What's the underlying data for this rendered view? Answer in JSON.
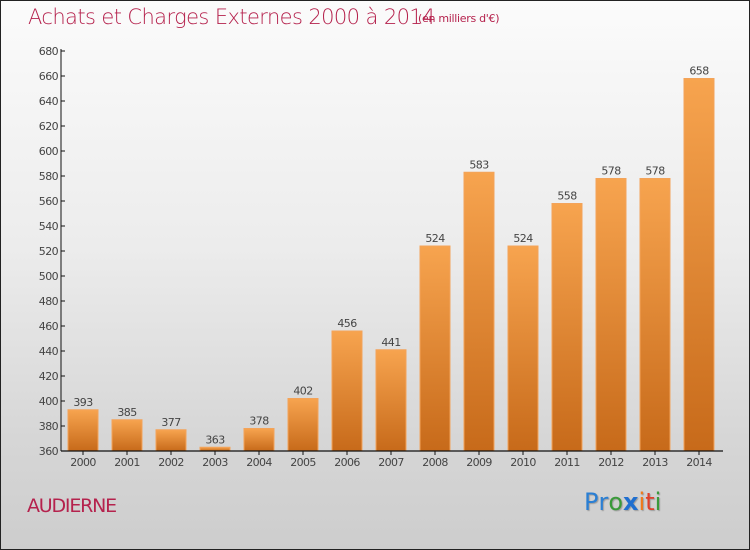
{
  "title": "Achats et Charges Externes 2000 à 2014",
  "subtitle": "(en milliers d'€)",
  "city": "AUDIERNE",
  "logo": {
    "letters": [
      {
        "char": "P",
        "color": "#2a7fd4"
      },
      {
        "char": "r",
        "color": "#2a7fd4"
      },
      {
        "char": "o",
        "color": "#3a9a3a"
      },
      {
        "char": "x",
        "color": "#1f6fd0"
      },
      {
        "char": "i",
        "color": "#f07a1a"
      },
      {
        "char": "t",
        "color": "#e0402a"
      },
      {
        "char": "i",
        "color": "#3a9a3a"
      }
    ]
  },
  "colors": {
    "title": "#b5224d",
    "bar_top": "#f7a44f",
    "bar_bottom": "#c76a1a",
    "axis": "#111111",
    "tick_label": "#444444"
  },
  "chart_data": {
    "type": "bar",
    "title": "Achats et Charges Externes 2000 à 2014",
    "subtitle": "(en milliers d'€)",
    "xlabel": "",
    "ylabel": "",
    "categories": [
      "2000",
      "2001",
      "2002",
      "2003",
      "2004",
      "2005",
      "2006",
      "2007",
      "2008",
      "2009",
      "2010",
      "2011",
      "2012",
      "2013",
      "2014"
    ],
    "values": [
      393,
      385,
      377,
      363,
      378,
      402,
      456,
      441,
      524,
      583,
      524,
      558,
      578,
      578,
      658
    ],
    "ylim": [
      360,
      680
    ],
    "yticks": [
      360,
      380,
      400,
      420,
      440,
      460,
      480,
      500,
      520,
      540,
      560,
      580,
      600,
      620,
      640,
      660,
      680
    ],
    "grid": false,
    "legend": "none",
    "data_labels": true
  }
}
